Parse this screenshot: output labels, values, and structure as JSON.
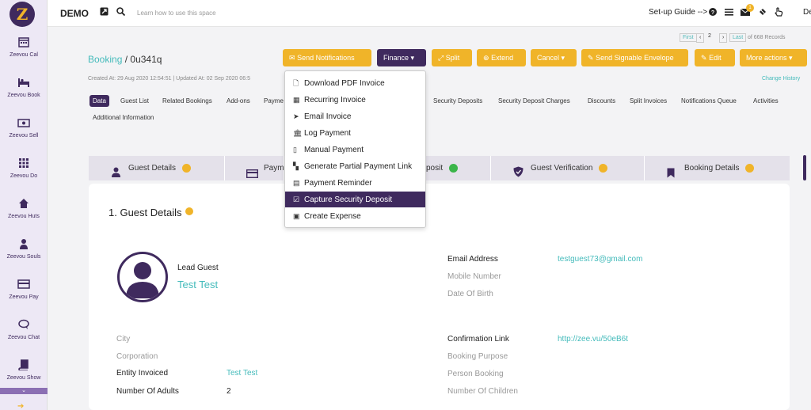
{
  "sidebar": {
    "logo": "Z",
    "items": [
      {
        "label": "Zeevou Cal",
        "icon": "calendar-icon"
      },
      {
        "label": "Zeevou Book",
        "icon": "bed-icon"
      },
      {
        "label": "Zeevou Sell",
        "icon": "money-icon"
      },
      {
        "label": "Zeevou Do",
        "icon": "grid-icon"
      },
      {
        "label": "Zeevou Huts",
        "icon": "home-icon"
      },
      {
        "label": "Zeevou Souls",
        "icon": "person-icon"
      },
      {
        "label": "Zeevou Pay",
        "icon": "card-icon"
      },
      {
        "label": "Zeevou Chat",
        "icon": "chat-icon"
      },
      {
        "label": "Zeevou Show",
        "icon": "book-icon"
      }
    ]
  },
  "topbar": {
    "brand": "DEMO",
    "learn": "Learn how to use this space",
    "setup": "Set-up Guide -->",
    "badge": "1",
    "user": "De"
  },
  "pager": {
    "first": "First",
    "page": "2",
    "last": "Last",
    "of": "of 668 Records"
  },
  "header": {
    "breadcrumb_root": "Booking",
    "breadcrumb_sep": " / ",
    "booking_id": "0u341q",
    "created": "Created At: 29 Aug 2020 12:54:51  |  Updated At: 02 Sep 2020 06:5",
    "change_history": "Change History"
  },
  "actions": {
    "send_notifications": "Send Notifications",
    "finance": "Finance",
    "split": "Split",
    "extend": "Extend",
    "cancel": "Cancel",
    "signable": "Send Signable Envelope",
    "edit": "Edit",
    "more": "More actions"
  },
  "tabs": {
    "data": "Data",
    "guest_list": "Guest List",
    "related": "Related Bookings",
    "addons": "Add-ons",
    "payments": "Payme",
    "security_deposits": "Security Deposits",
    "sd_charges": "Security Deposit Charges",
    "discounts": "Discounts",
    "split_invoices": "Split Invoices",
    "notifications_queue": "Notifications Queue",
    "activities": "Activities",
    "additional": "Additional Information"
  },
  "steps": {
    "guest_details": "Guest Details",
    "payment": "Payme",
    "deposit": "posit",
    "verification": "Guest Verification",
    "booking_details": "Booking Details"
  },
  "finance_menu": [
    {
      "label": "Download PDF Invoice",
      "icon": "pdf-icon",
      "glyph": "🗋"
    },
    {
      "label": "Recurring Invoice",
      "icon": "grid-icon",
      "glyph": "▦"
    },
    {
      "label": "Email Invoice",
      "icon": "send-icon",
      "glyph": "➤"
    },
    {
      "label": "Log Payment",
      "icon": "bank-icon",
      "glyph": "🏛"
    },
    {
      "label": "Manual Payment",
      "icon": "mobile-icon",
      "glyph": "▯"
    },
    {
      "label": "Generate Partial Payment Link",
      "icon": "qr-icon",
      "glyph": "▚"
    },
    {
      "label": "Payment Reminder",
      "icon": "calendar-icon",
      "glyph": "▤"
    },
    {
      "label": "Capture Security Deposit",
      "icon": "checkbox-icon",
      "glyph": "☑"
    },
    {
      "label": "Create Expense",
      "icon": "money-icon",
      "glyph": "▣"
    }
  ],
  "guest": {
    "section_title": "1. Guest Details",
    "lead_label": "Lead Guest",
    "lead_name": "Test Test",
    "email_label": "Email Address",
    "email_value": "testguest73@gmail.com",
    "mobile_label": "Mobile Number",
    "dob_label": "Date Of Birth",
    "city_label": "City",
    "corporation_label": "Corporation",
    "entity_label": "Entity Invoiced",
    "entity_value": "Test Test",
    "adults_label": "Number Of Adults",
    "adults_value": "2",
    "confirm_label": "Confirmation Link",
    "confirm_value": "http://zee.vu/50eB6t",
    "purpose_label": "Booking Purpose",
    "person_label": "Person Booking",
    "children_label": "Number Of Children"
  },
  "colors": {
    "brand": "#3f2a5e",
    "accent": "#f0b429",
    "link": "#44bbbb",
    "success": "#3bb54a"
  }
}
